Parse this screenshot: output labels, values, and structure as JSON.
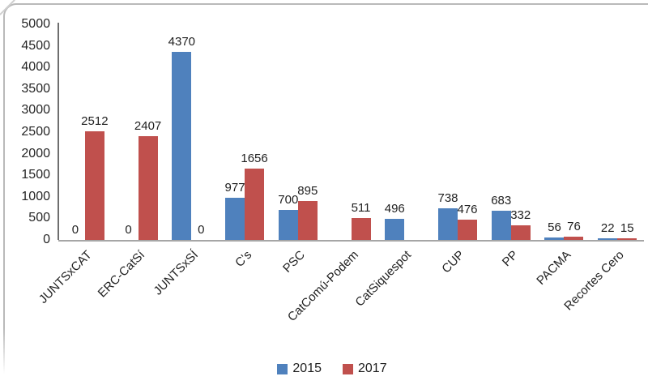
{
  "frame": {
    "background": "#ffffff",
    "border_color": "#b9b9b9"
  },
  "chart_data": {
    "type": "bar",
    "title": "",
    "xlabel": "",
    "ylabel": "",
    "categories": [
      "JUNTSxCAT",
      "ERC-CatSí",
      "JUNTSxSÍ",
      "C's",
      "PSC",
      "CatComú-Podem",
      "CatSiquespot",
      "CUP",
      "PP",
      "PACMA",
      "Recortes Cero"
    ],
    "series": [
      {
        "name": "2015",
        "color": "#4F81BD",
        "values": [
          0,
          0,
          4370,
          977,
          700,
          null,
          496,
          738,
          683,
          56,
          22
        ]
      },
      {
        "name": "2017",
        "color": "#C0504D",
        "values": [
          2512,
          2407,
          0,
          1656,
          895,
          511,
          null,
          476,
          332,
          76,
          15
        ]
      }
    ],
    "ylim": [
      0,
      5000
    ],
    "yticks": [
      0,
      500,
      1000,
      1500,
      2000,
      2500,
      3000,
      3500,
      4000,
      4500,
      5000
    ],
    "grid": false,
    "value_labels": true,
    "legend_position": "bottom",
    "axis_color": "#6e6e6e",
    "baseline_color": "#a6a6a6",
    "text_color": "#1f1f1f"
  },
  "legend": {
    "items": [
      {
        "label": "2015",
        "color": "#4F81BD"
      },
      {
        "label": "2017",
        "color": "#C0504D"
      }
    ]
  }
}
